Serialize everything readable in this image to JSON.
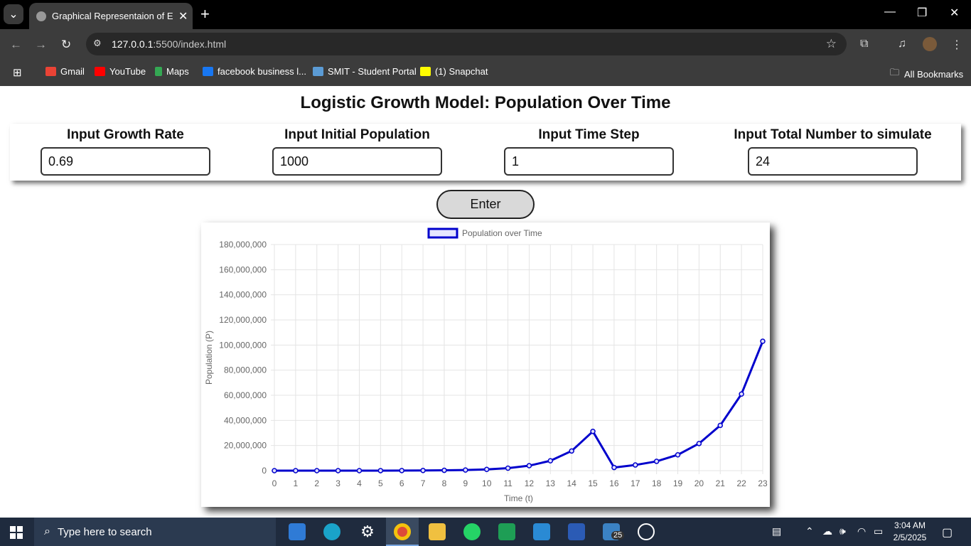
{
  "browser": {
    "tab_title": "Graphical Representaion of Exp",
    "new_tab": "+",
    "url_host": "127.0.0.1",
    "url_path": ":5500/index.html",
    "bookmarks": [
      {
        "label": "Gmail",
        "color": "#ea4335"
      },
      {
        "label": "YouTube",
        "color": "#ff0000"
      },
      {
        "label": "Maps",
        "color": "#34a853"
      },
      {
        "label": "facebook business l...",
        "color": "#1877f2"
      },
      {
        "label": "SMIT - Student Portal",
        "color": "#5b9bd5"
      },
      {
        "label": "(1) Snapchat",
        "color": "#fffc00"
      }
    ],
    "all_bookmarks": "All Bookmarks"
  },
  "page": {
    "heading": "Logistic Growth Model: Population Over Time",
    "fields": [
      {
        "label": "Input Growth Rate",
        "value": "0.69"
      },
      {
        "label": "Input Initial Population",
        "value": "1000"
      },
      {
        "label": "Input Time Step",
        "value": "1"
      },
      {
        "label": "Input Total Number to simulate",
        "value": "24"
      }
    ],
    "enter_label": "Enter"
  },
  "chart_data": {
    "type": "line",
    "title": "",
    "xlabel": "Time (t)",
    "ylabel": "Population (P)",
    "categories": [
      "0",
      "1",
      "2",
      "3",
      "4",
      "5",
      "6",
      "7",
      "8",
      "9",
      "10",
      "11",
      "12",
      "13",
      "14",
      "15",
      "16",
      "17",
      "18",
      "19",
      "20",
      "21",
      "22",
      "23"
    ],
    "series": [
      {
        "name": "Population over Time",
        "color": "#0000cc",
        "values": [
          1000,
          1994,
          3975,
          7925,
          15799,
          31497,
          62794,
          125189,
          249580,
          497570,
          991980,
          1977600,
          3942600,
          7860000,
          15670000,
          31240000,
          2500000,
          4500000,
          7400000,
          12600000,
          21600000,
          36000000,
          61000000,
          103000000
        ]
      }
    ],
    "ylim": [
      0,
      180000000
    ],
    "yticks": [
      "0",
      "20,000,000",
      "40,000,000",
      "60,000,000",
      "80,000,000",
      "100,000,000",
      "120,000,000",
      "140,000,000",
      "160,000,000",
      "180,000,000"
    ],
    "grid": true,
    "legend": "top-center"
  },
  "taskbar": {
    "search_placeholder": "Type here to search",
    "time": "3:04 AM",
    "date": "2/5/2025",
    "badge": "25"
  }
}
